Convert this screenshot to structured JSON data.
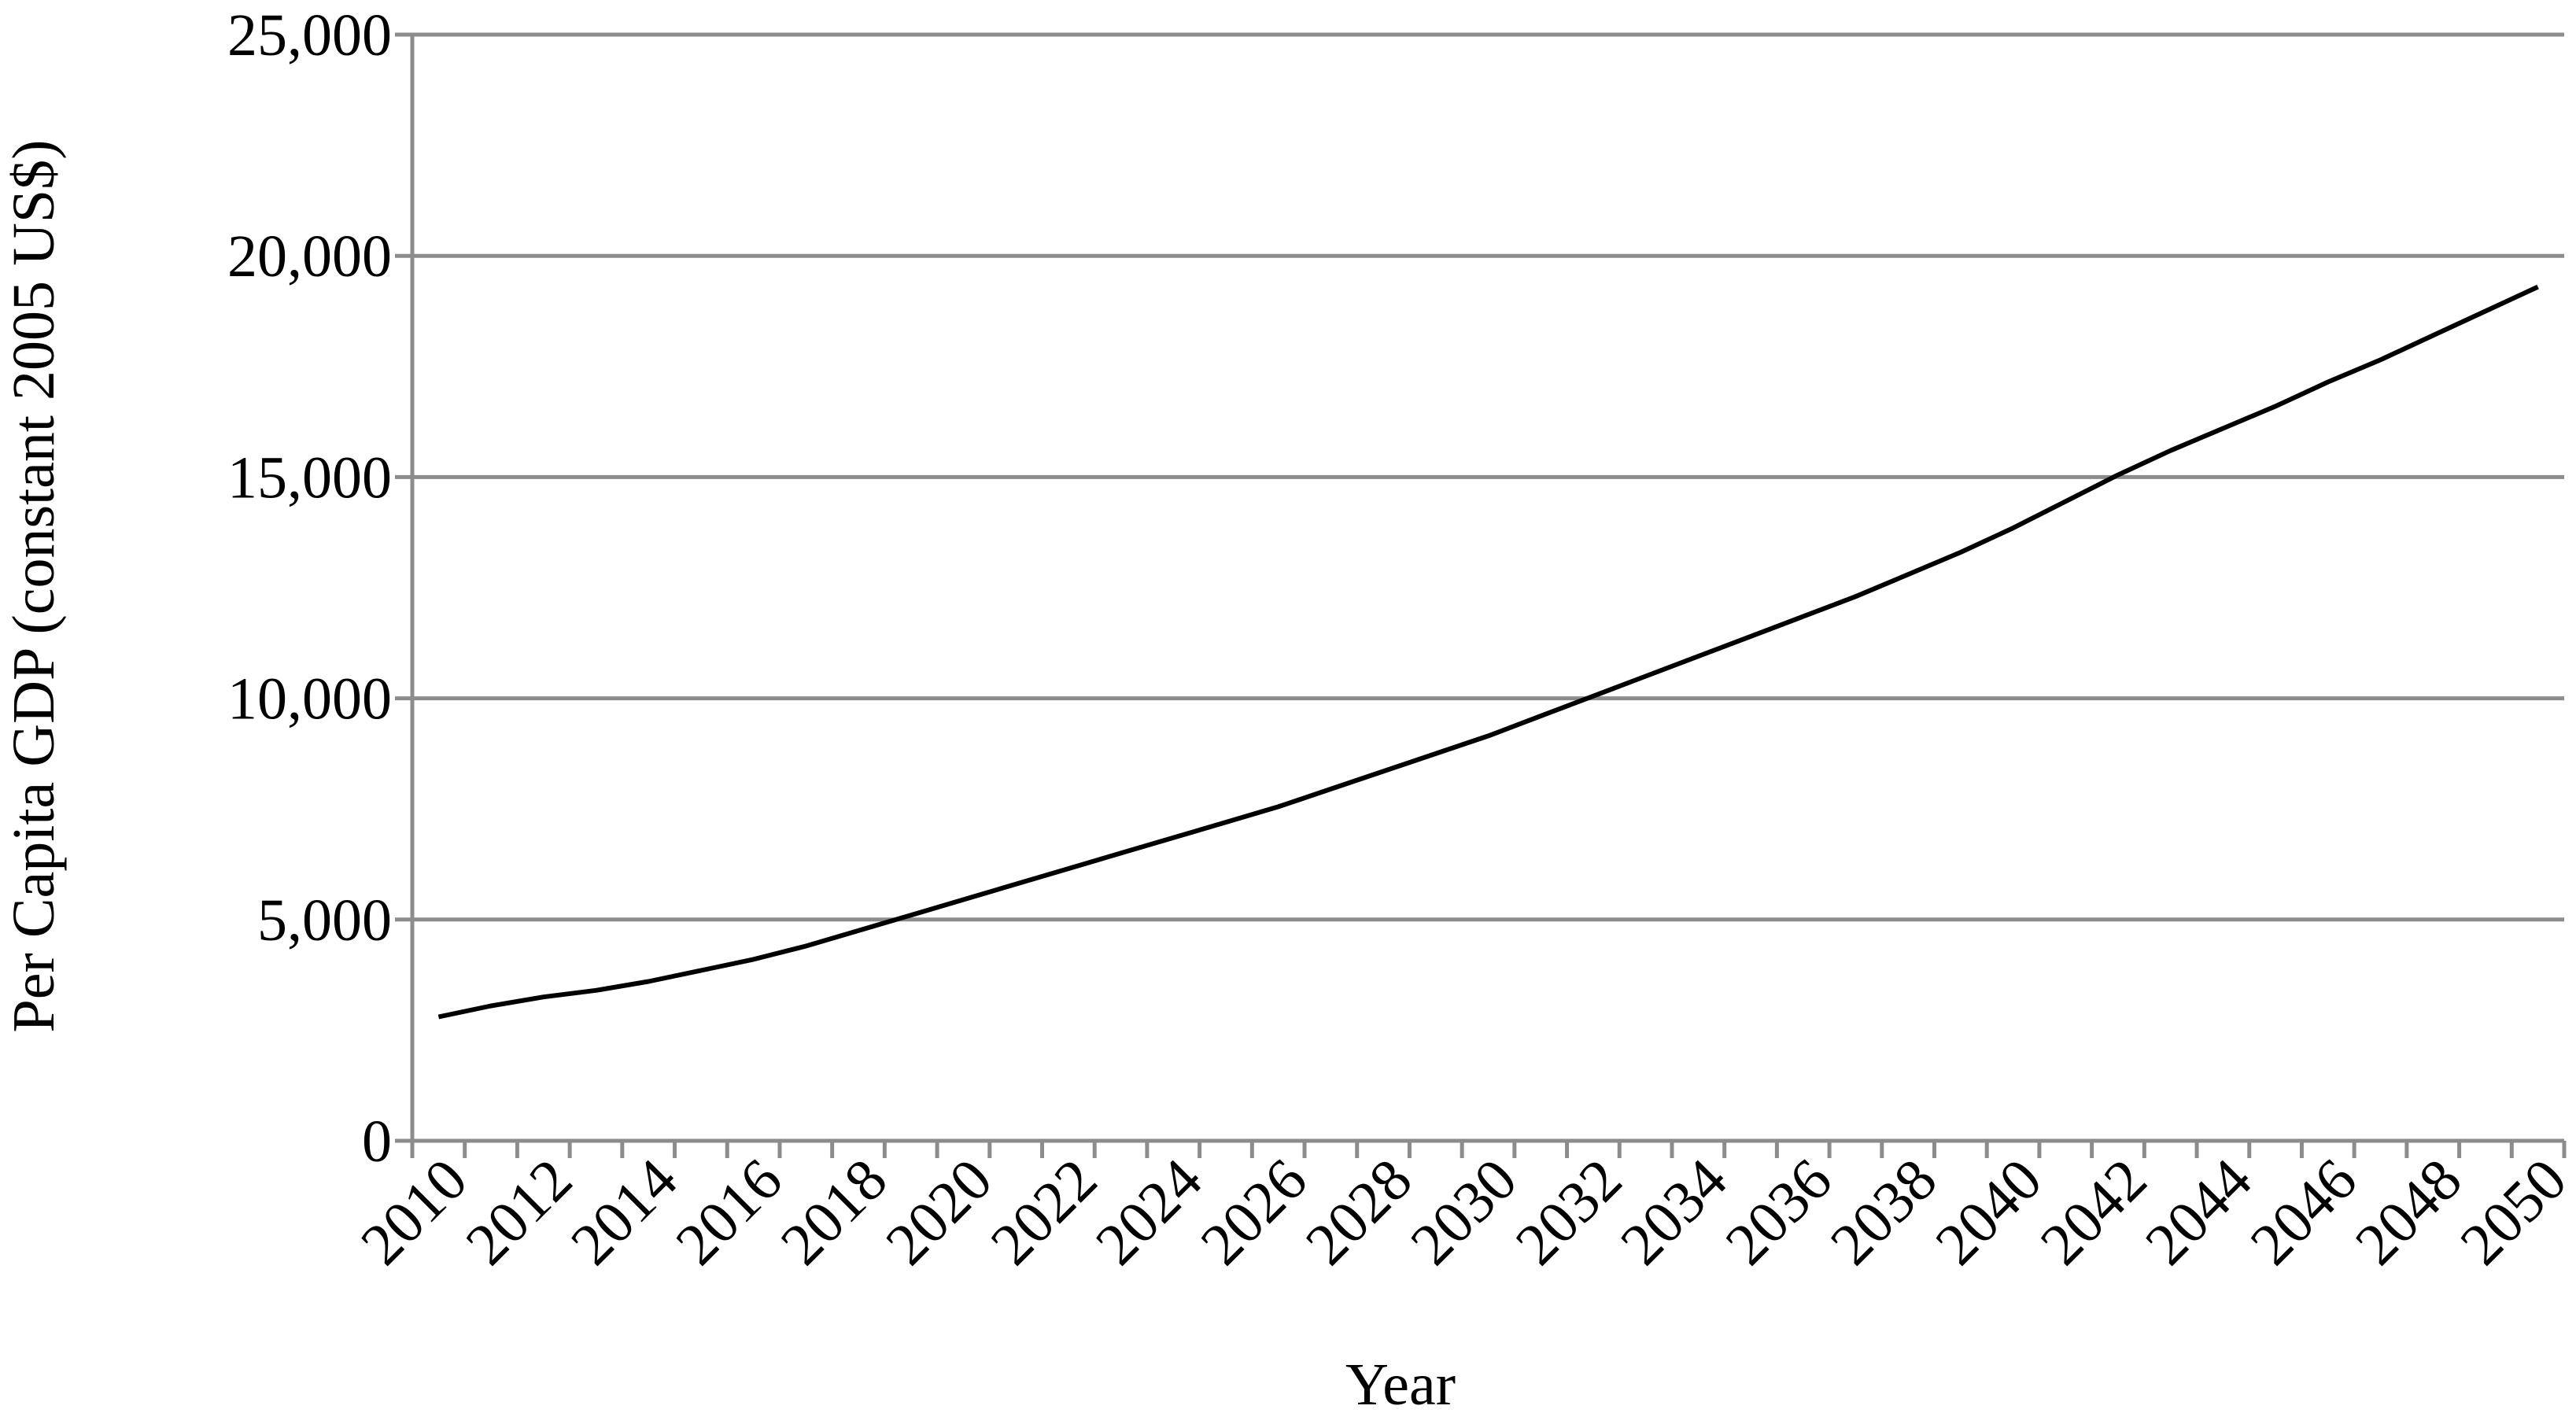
{
  "chart_data": {
    "type": "line",
    "x_label": "Year",
    "y_label": "Per Capita GDP (constant 2005 US$)",
    "categories": [
      "2010",
      null,
      "2012",
      null,
      "2014",
      null,
      "2016",
      null,
      "2018",
      null,
      "2020",
      null,
      "2022",
      null,
      "2024",
      null,
      "2026",
      null,
      "2028",
      null,
      "2030",
      null,
      "2032",
      null,
      "2034",
      null,
      "2036",
      null,
      "2038",
      null,
      "2040",
      null,
      "2042",
      null,
      "2044",
      null,
      "2046",
      null,
      "2048",
      null,
      "2050"
    ],
    "values": [
      2800,
      3050,
      3250,
      3400,
      3600,
      3850,
      4100,
      4400,
      4750,
      5100,
      5450,
      5800,
      6150,
      6500,
      6850,
      7200,
      7550,
      7950,
      8350,
      8750,
      9150,
      9600,
      10050,
      10500,
      10950,
      11400,
      11850,
      12300,
      12800,
      13300,
      13850,
      14450,
      15050,
      15600,
      16100,
      16600,
      17150,
      17650,
      18200,
      18750,
      19300
    ],
    "color": "#000000",
    "ylim": [
      0,
      25000
    ],
    "yticks": [
      0,
      {
        "value": 5000,
        "label": "5,000"
      },
      {
        "value": 10000,
        "label": "10,000"
      },
      {
        "value": 15000,
        "label": "15,000"
      },
      {
        "value": 20000,
        "label": "20,000"
      },
      {
        "value": 25000,
        "label": "25,000"
      }
    ],
    "grid": true
  }
}
